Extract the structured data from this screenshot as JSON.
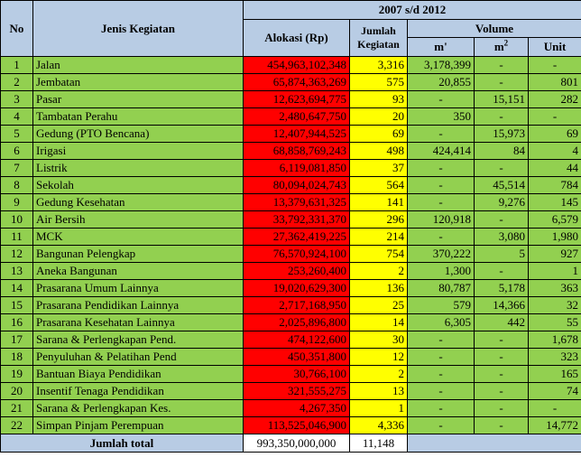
{
  "header": {
    "no": "No",
    "jenis": "Jenis Kegiatan",
    "period": "2007 s/d 2012",
    "alokasi": "Alokasi (Rp)",
    "jumlah_line1": "Jumlah",
    "jumlah_line2": "Kegiatan",
    "volume": "Volume",
    "unit_m": "m'",
    "unit_m2_base": "m",
    "unit_m2_sup": "2",
    "unit_unit": "Unit"
  },
  "rows": [
    {
      "no": "1",
      "name": "Jalan",
      "alloc": "454,963,102,348",
      "count": "3,316",
      "m": "3,178,399",
      "m2": "-",
      "unit": "-"
    },
    {
      "no": "2",
      "name": "Jembatan",
      "alloc": "65,874,363,269",
      "count": "575",
      "m": "20,855",
      "m2": "-",
      "unit": "801"
    },
    {
      "no": "3",
      "name": "Pasar",
      "alloc": "12,623,694,775",
      "count": "93",
      "m": "-",
      "m2": "15,151",
      "unit": "282"
    },
    {
      "no": "4",
      "name": "Tambatan Perahu",
      "alloc": "2,480,647,750",
      "count": "20",
      "m": "350",
      "m2": "-",
      "unit": "-"
    },
    {
      "no": "5",
      "name": "Gedung (PTO Bencana)",
      "alloc": "12,407,944,525",
      "count": "69",
      "m": "-",
      "m2": "15,973",
      "unit": "69"
    },
    {
      "no": "6",
      "name": "Irigasi",
      "alloc": "68,858,769,243",
      "count": "498",
      "m": "424,414",
      "m2": "84",
      "unit": "4"
    },
    {
      "no": "7",
      "name": "Listrik",
      "alloc": "6,119,081,850",
      "count": "37",
      "m": "-",
      "m2": "-",
      "unit": "44"
    },
    {
      "no": "8",
      "name": "Sekolah",
      "alloc": "80,094,024,743",
      "count": "564",
      "m": "-",
      "m2": "45,514",
      "unit": "784"
    },
    {
      "no": "9",
      "name": "Gedung Kesehatan",
      "alloc": "13,379,631,325",
      "count": "141",
      "m": "-",
      "m2": "9,276",
      "unit": "145"
    },
    {
      "no": "10",
      "name": "Air Bersih",
      "alloc": "33,792,331,370",
      "count": "296",
      "m": "120,918",
      "m2": "-",
      "unit": "6,579"
    },
    {
      "no": "11",
      "name": "MCK",
      "alloc": "27,362,419,225",
      "count": "214",
      "m": "-",
      "m2": "3,080",
      "unit": "1,980"
    },
    {
      "no": "12",
      "name": "Bangunan Pelengkap",
      "alloc": "76,570,924,100",
      "count": "754",
      "m": "370,222",
      "m2": "5",
      "unit": "927"
    },
    {
      "no": "13",
      "name": "Aneka Bangunan",
      "alloc": "253,260,400",
      "count": "2",
      "m": "1,300",
      "m2": "-",
      "unit": "1"
    },
    {
      "no": "14",
      "name": "Prasarana Umum Lainnya",
      "alloc": "19,020,629,300",
      "count": "136",
      "m": "80,787",
      "m2": "5,178",
      "unit": "363"
    },
    {
      "no": "15",
      "name": "Prasarana Pendidikan Lainnya",
      "alloc": "2,717,168,950",
      "count": "25",
      "m": "579",
      "m2": "14,366",
      "unit": "32"
    },
    {
      "no": "16",
      "name": "Prasarana Kesehatan Lainnya",
      "alloc": "2,025,896,800",
      "count": "14",
      "m": "6,305",
      "m2": "442",
      "unit": "55"
    },
    {
      "no": "17",
      "name": "Sarana & Perlengkapan Pend.",
      "alloc": "474,122,600",
      "count": "30",
      "m": "-",
      "m2": "-",
      "unit": "1,678"
    },
    {
      "no": "18",
      "name": "Penyuluhan & Pelatihan Pend",
      "alloc": "450,351,800",
      "count": "12",
      "m": "-",
      "m2": "-",
      "unit": "323"
    },
    {
      "no": "19",
      "name": "Bantuan Biaya Pendidikan",
      "alloc": "30,766,100",
      "count": "2",
      "m": "-",
      "m2": "-",
      "unit": "165"
    },
    {
      "no": "20",
      "name": "Insentif Tenaga Pendidikan",
      "alloc": "321,555,275",
      "count": "13",
      "m": "-",
      "m2": "-",
      "unit": "74"
    },
    {
      "no": "21",
      "name": "Sarana & Perlengkapan Kes.",
      "alloc": "4,267,350",
      "count": "1",
      "m": "-",
      "m2": "-",
      "unit": "-"
    },
    {
      "no": "22",
      "name": "Simpan Pinjam Perempuan",
      "alloc": "113,525,046,900",
      "count": "4,336",
      "m": "-",
      "m2": "-",
      "unit": "14,772"
    }
  ],
  "total": {
    "label": "Jumlah total",
    "alloc": "993,350,000,000",
    "count": "11,148"
  },
  "colors": {
    "header_bg": "#b8cce4",
    "green": "#92d050",
    "red": "#ff0000",
    "yellow": "#ffff00"
  }
}
